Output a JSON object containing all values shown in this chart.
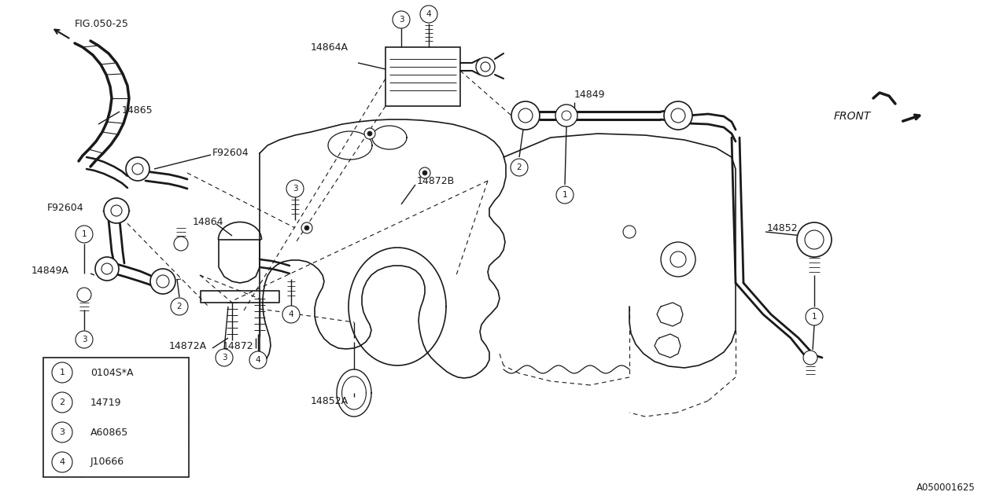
{
  "bg_color": "#ffffff",
  "line_color": "#1a1a1a",
  "fig_id": "A050001625",
  "fig_ref": "FIG.050-25",
  "legend": [
    {
      "num": "1",
      "code": "0104S*A"
    },
    {
      "num": "2",
      "code": "14719"
    },
    {
      "num": "3",
      "code": "A60865"
    },
    {
      "num": "4",
      "code": "J10666"
    }
  ]
}
